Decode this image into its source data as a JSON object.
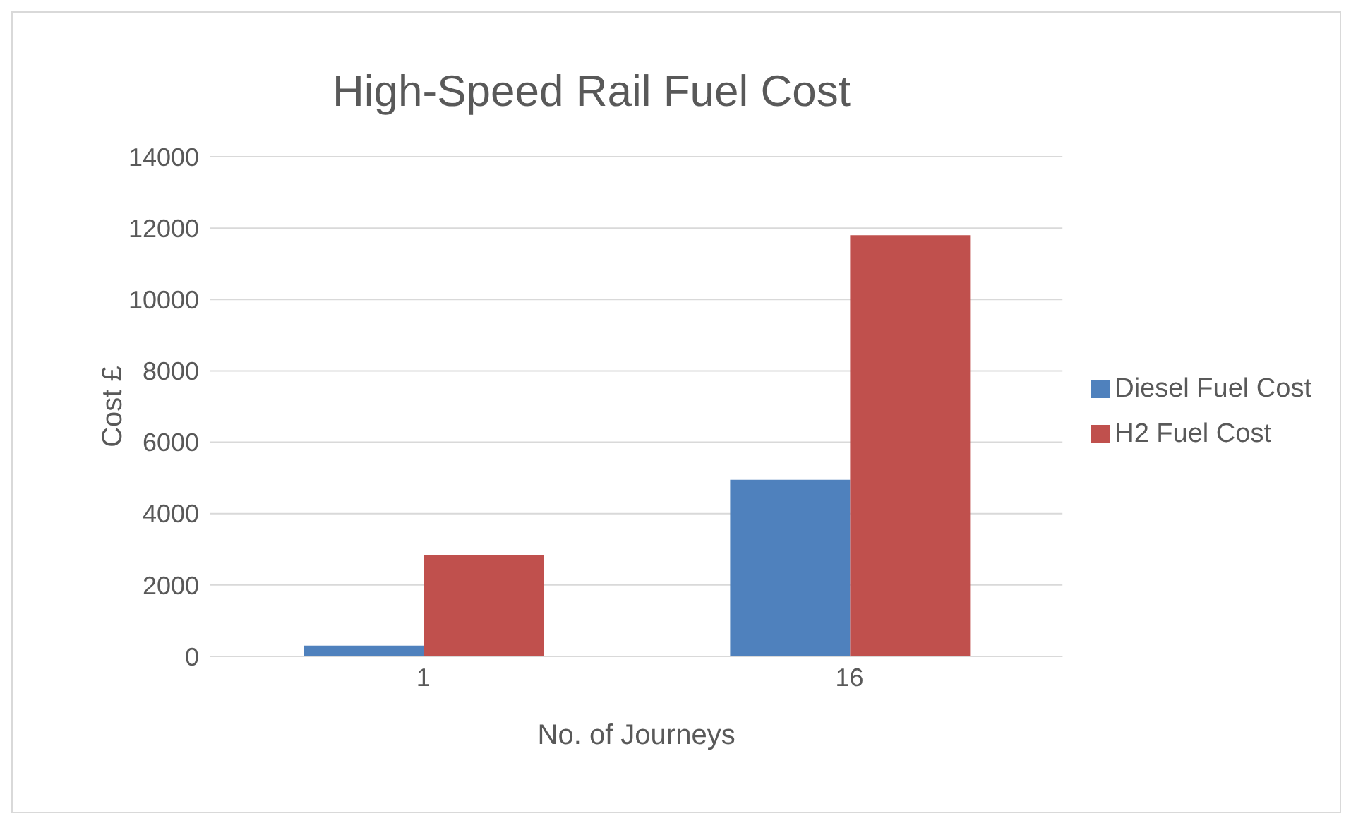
{
  "chart_data": {
    "type": "bar",
    "title": "High-Speed Rail Fuel Cost",
    "xlabel": "No. of Journeys",
    "ylabel": "Cost £",
    "categories": [
      "1",
      "16"
    ],
    "series": [
      {
        "name": "Diesel Fuel Cost",
        "color": "#4f81bd",
        "values": [
          300,
          4950
        ]
      },
      {
        "name": "H2 Fuel Cost",
        "color": "#c0504d",
        "values": [
          2830,
          11800
        ]
      }
    ],
    "ylim": [
      0,
      14000
    ],
    "yticks": [
      0,
      2000,
      4000,
      6000,
      8000,
      10000,
      12000,
      14000
    ],
    "grid": "y",
    "legend": "right"
  }
}
